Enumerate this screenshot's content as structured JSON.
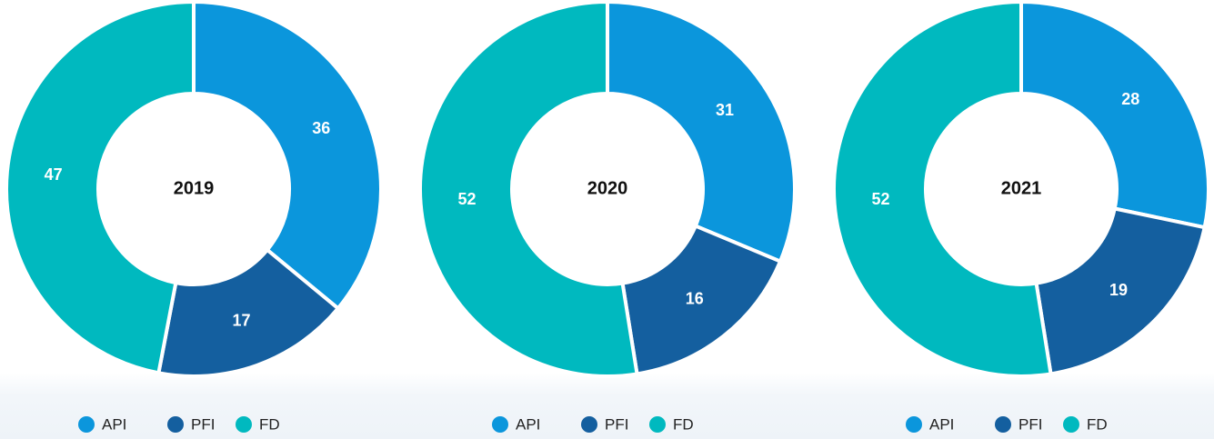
{
  "chart_data": [
    {
      "type": "pie",
      "donut": true,
      "title": "2019",
      "categories": [
        "API",
        "PFI",
        "FD"
      ],
      "values": [
        36,
        17,
        47
      ],
      "colors": [
        "#0b96dc",
        "#145f9f",
        "#00b9bf"
      ],
      "legend": "bottom"
    },
    {
      "type": "pie",
      "donut": true,
      "title": "2020",
      "categories": [
        "API",
        "PFI",
        "FD"
      ],
      "values": [
        31,
        16,
        52
      ],
      "colors": [
        "#0b96dc",
        "#145f9f",
        "#00b9bf"
      ],
      "legend": "bottom"
    },
    {
      "type": "pie",
      "donut": true,
      "title": "2021",
      "categories": [
        "API",
        "PFI",
        "FD"
      ],
      "values": [
        28,
        19,
        52
      ],
      "colors": [
        "#0b96dc",
        "#145f9f",
        "#00b9bf"
      ],
      "legend": "bottom"
    }
  ]
}
